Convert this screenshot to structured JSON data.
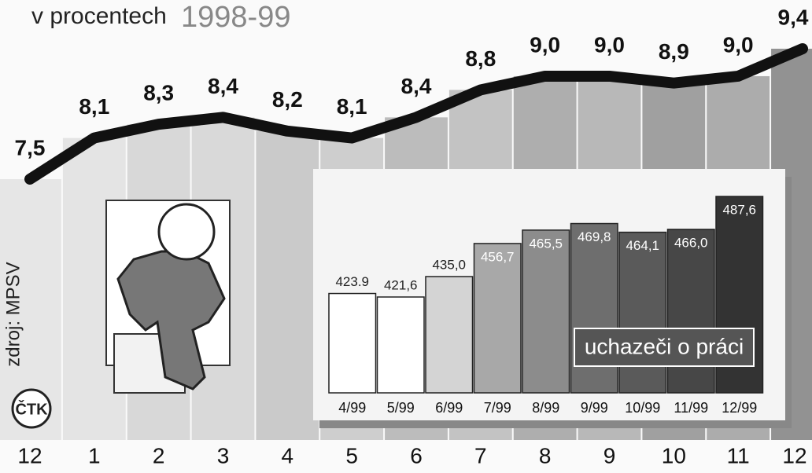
{
  "chart_data": [
    {
      "type": "line",
      "title": "v procentech",
      "subtitle": "1998-99",
      "source": "zdroj: MPSV",
      "agency": "ČTK",
      "categories": [
        "12",
        "1",
        "2",
        "3",
        "4",
        "5",
        "6",
        "7",
        "8",
        "9",
        "10",
        "11",
        "12"
      ],
      "values": [
        7.5,
        8.1,
        8.3,
        8.4,
        8.2,
        8.1,
        8.4,
        8.8,
        9.0,
        9.0,
        8.9,
        9.0,
        9.4
      ],
      "value_labels": [
        "7,5",
        "8,1",
        "8,3",
        "8,4",
        "8,2",
        "8,1",
        "8,4",
        "8,8",
        "9,0",
        "9,0",
        "8,9",
        "9,0",
        "9,4"
      ],
      "color": "#111111"
    },
    {
      "type": "bar",
      "title": "uchazeči o práci",
      "categories": [
        "4/99",
        "5/99",
        "6/99",
        "7/99",
        "8/99",
        "9/99",
        "10/99",
        "11/99",
        "12/99"
      ],
      "values": [
        423.9,
        421.6,
        435.0,
        456.7,
        465.5,
        469.8,
        464.1,
        466.0,
        487.6
      ],
      "value_labels": [
        "423.9",
        "421,6",
        "435,0",
        "456,7",
        "465,5",
        "469,8",
        "464,1",
        "466,0",
        "487,6"
      ],
      "colors": [
        "#ffffff",
        "#ffffff",
        "#d4d4d4",
        "#a8a8a8",
        "#8c8c8c",
        "#6e6e6e",
        "#5a5a5a",
        "#474747",
        "#333333"
      ]
    }
  ]
}
